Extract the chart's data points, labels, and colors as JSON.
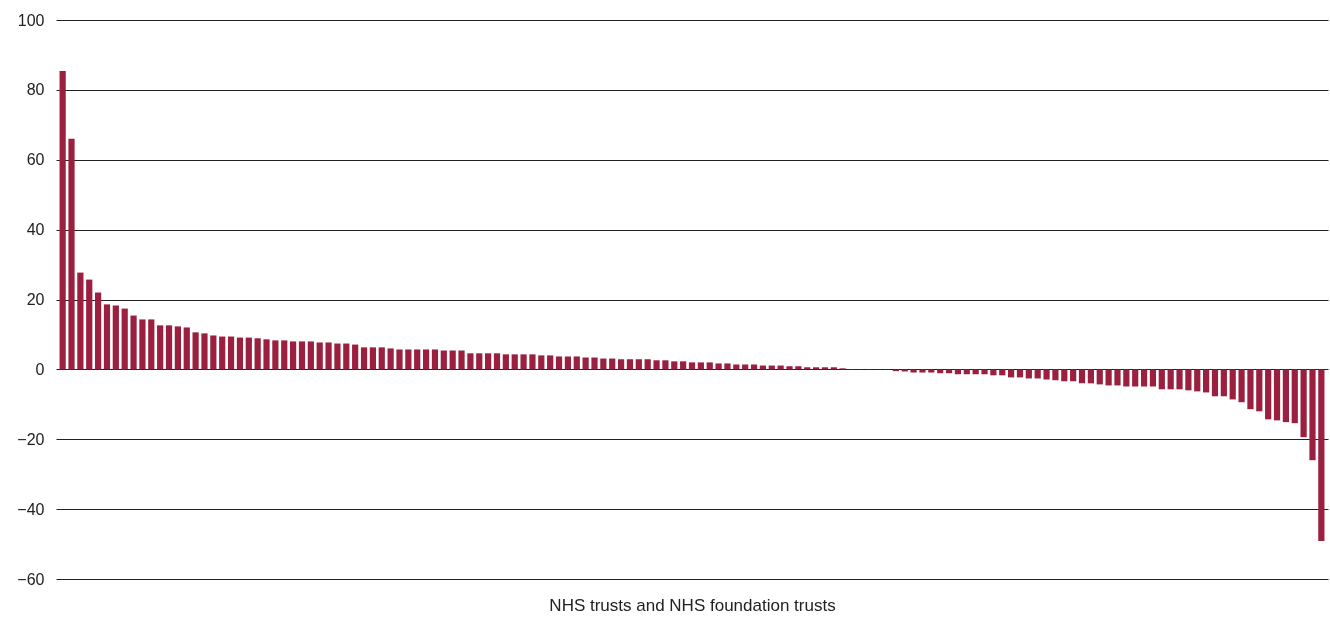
{
  "chart_data": {
    "type": "bar",
    "xlabel": "NHS trusts and NHS foundation trusts",
    "categories": [
      null,
      null,
      null,
      null,
      null,
      null,
      null,
      null,
      null,
      null,
      null,
      null,
      null,
      null,
      null,
      null,
      null,
      null,
      null,
      null,
      null,
      null,
      null,
      null,
      null,
      null,
      null,
      null,
      null,
      null,
      null,
      null,
      null,
      null,
      null,
      null,
      null,
      null,
      null,
      null,
      null,
      null,
      null,
      null,
      null,
      null,
      null,
      null,
      null,
      null,
      null,
      null,
      null,
      null,
      null,
      null,
      null,
      null,
      null,
      null,
      null,
      null,
      null,
      null,
      null,
      null,
      null,
      null,
      null,
      null,
      null,
      null,
      null,
      null,
      null,
      null,
      null,
      null,
      null,
      null,
      null,
      null,
      null,
      null,
      null,
      null,
      null,
      null,
      null,
      null,
      null,
      null,
      null,
      null,
      null,
      null,
      null,
      null,
      null,
      null,
      null,
      null,
      null,
      null,
      null,
      null,
      null,
      null,
      null,
      null,
      null,
      null,
      null,
      null,
      null,
      null,
      null,
      null,
      null,
      null,
      null,
      null,
      null,
      null,
      null,
      null,
      null,
      null,
      null,
      null,
      null,
      null,
      null,
      null,
      null,
      null,
      null,
      null,
      null,
      null,
      null,
      null,
      null
    ],
    "values": [
      85.4,
      66,
      27.7,
      25.7,
      22,
      18.6,
      18.3,
      17.4,
      15.4,
      14.3,
      14.3,
      12.6,
      12.6,
      12.3,
      12,
      10.6,
      10.3,
      9.7,
      9.4,
      9.4,
      9.1,
      9.1,
      8.9,
      8.6,
      8.3,
      8.3,
      8,
      8,
      8,
      7.7,
      7.7,
      7.4,
      7.4,
      7.1,
      6.3,
      6.3,
      6.3,
      6,
      5.7,
      5.7,
      5.7,
      5.7,
      5.7,
      5.4,
      5.4,
      5.4,
      4.6,
      4.6,
      4.6,
      4.6,
      4.3,
      4.3,
      4.3,
      4.3,
      4,
      4,
      3.7,
      3.7,
      3.7,
      3.4,
      3.4,
      3.1,
      3.1,
      2.9,
      2.9,
      2.9,
      2.9,
      2.6,
      2.6,
      2.3,
      2.3,
      2,
      2,
      2,
      1.7,
      1.7,
      1.4,
      1.4,
      1.4,
      1.1,
      1.1,
      1.1,
      0.9,
      0.9,
      0.6,
      0.6,
      0.6,
      0.6,
      0.3,
      -0.1,
      -0.1,
      -0.1,
      -0.1,
      -0.1,
      -0.5,
      -0.6,
      -0.9,
      -0.9,
      -0.9,
      -1.1,
      -1.1,
      -1.4,
      -1.4,
      -1.4,
      -1.4,
      -1.7,
      -1.7,
      -2.3,
      -2.3,
      -2.6,
      -2.6,
      -2.9,
      -3.1,
      -3.4,
      -3.4,
      -4,
      -4,
      -4.3,
      -4.6,
      -4.6,
      -4.9,
      -4.9,
      -4.9,
      -4.9,
      -5.7,
      -5.7,
      -5.7,
      -6,
      -6.3,
      -6.6,
      -7.7,
      -7.7,
      -8.6,
      -9.4,
      -11.4,
      -12,
      -14.3,
      -14.6,
      -15.1,
      -15.4,
      -19.4,
      -26,
      -49.1
    ],
    "color": "#9b1f3f",
    "ylim": [
      -60,
      100
    ],
    "yticks": [
      -60,
      -40,
      -20,
      0,
      20,
      40,
      60,
      80,
      100
    ],
    "grid": "y",
    "tick_labels": "y"
  }
}
